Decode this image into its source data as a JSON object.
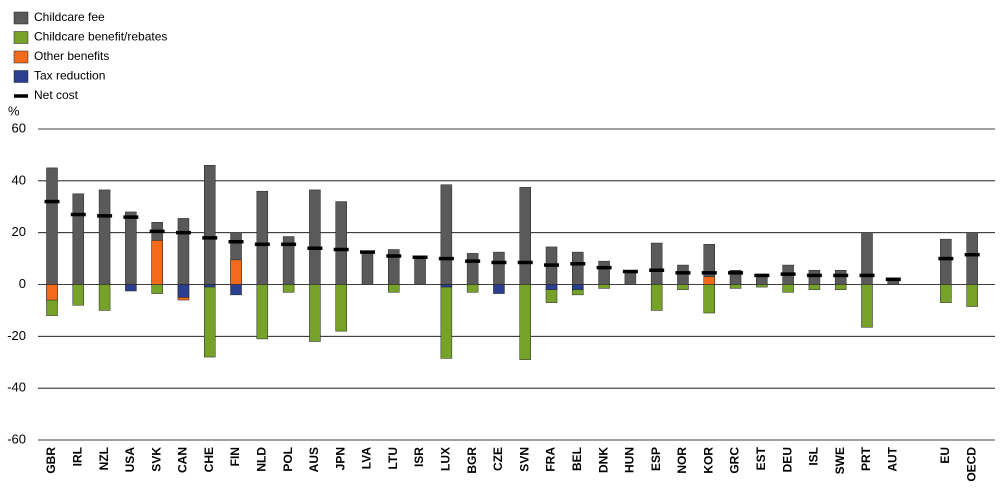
{
  "chart_data": {
    "type": "bar",
    "y_label": "%",
    "categories": [
      "GBR",
      "IRL",
      "NZL",
      "USA",
      "SVK",
      "CAN",
      "CHE",
      "FIN",
      "NLD",
      "POL",
      "AUS",
      "JPN",
      "LVA",
      "LTU",
      "ISR",
      "LUX",
      "BGR",
      "CZE",
      "SVN",
      "FRA",
      "BEL",
      "DNK",
      "HUN",
      "ESP",
      "NOR",
      "KOR",
      "GRC",
      "EST",
      "DEU",
      "ISL",
      "SWE",
      "PRT",
      "AUT",
      null,
      "EU",
      "OECD"
    ],
    "series": [
      {
        "name": "Childcare fee",
        "color": "#5a5a5a",
        "values": [
          45,
          35,
          36.5,
          28,
          24,
          25.5,
          46,
          20,
          36,
          18.5,
          36.5,
          32,
          12.5,
          13.5,
          11,
          38.5,
          12,
          12.5,
          37.5,
          14.5,
          12.5,
          9,
          5.5,
          16,
          7.5,
          15.5,
          5.5,
          4,
          7.5,
          5.5,
          5.5,
          20,
          2.5,
          null,
          17.5,
          20
        ]
      },
      {
        "name": "Childcare benefit/rebates",
        "color": "#77a22a",
        "values": [
          -12,
          -8,
          -10,
          null,
          -3.5,
          null,
          -28,
          null,
          -21,
          -3,
          -22,
          -18,
          null,
          -3,
          null,
          -28.5,
          -3,
          null,
          -29,
          -7,
          -4,
          -1.5,
          null,
          -10,
          -2,
          -11,
          -1.5,
          -1,
          -3,
          -2,
          -2,
          -16.5,
          null,
          null,
          -7,
          -8.5
        ]
      },
      {
        "name": "Other benefits",
        "color": "#f26b1d",
        "values": [
          -6,
          null,
          null,
          null,
          17,
          -6,
          null,
          9.5,
          null,
          null,
          null,
          null,
          null,
          null,
          null,
          null,
          null,
          null,
          null,
          null,
          null,
          null,
          null,
          null,
          null,
          3,
          null,
          null,
          null,
          null,
          null,
          null,
          null,
          null,
          null,
          null
        ]
      },
      {
        "name": "Tax reduction",
        "color": "#2a3f8f",
        "values": [
          null,
          null,
          null,
          -2.5,
          null,
          -5,
          -1,
          -4,
          null,
          null,
          null,
          null,
          null,
          null,
          null,
          -1,
          null,
          -3.5,
          null,
          -2,
          -2,
          null,
          null,
          null,
          null,
          null,
          null,
          null,
          null,
          null,
          null,
          null,
          null,
          null,
          null,
          null
        ]
      },
      {
        "name": "Net cost",
        "color": "#000000",
        "mark": "dash",
        "values": [
          32,
          27,
          26.5,
          26,
          20.5,
          20,
          18,
          16.5,
          15.5,
          15.5,
          14,
          13.5,
          12.5,
          11,
          10.5,
          10,
          9,
          8.5,
          8.5,
          7.5,
          8,
          6.5,
          5,
          5.5,
          4.5,
          4.5,
          4.5,
          3.5,
          4,
          3.5,
          3.5,
          3.5,
          2,
          null,
          10,
          11.5
        ]
      }
    ],
    "ylim": [
      -60,
      60
    ],
    "yticks": [
      -60,
      -40,
      -20,
      0,
      20,
      40,
      60
    ],
    "grid": true
  }
}
